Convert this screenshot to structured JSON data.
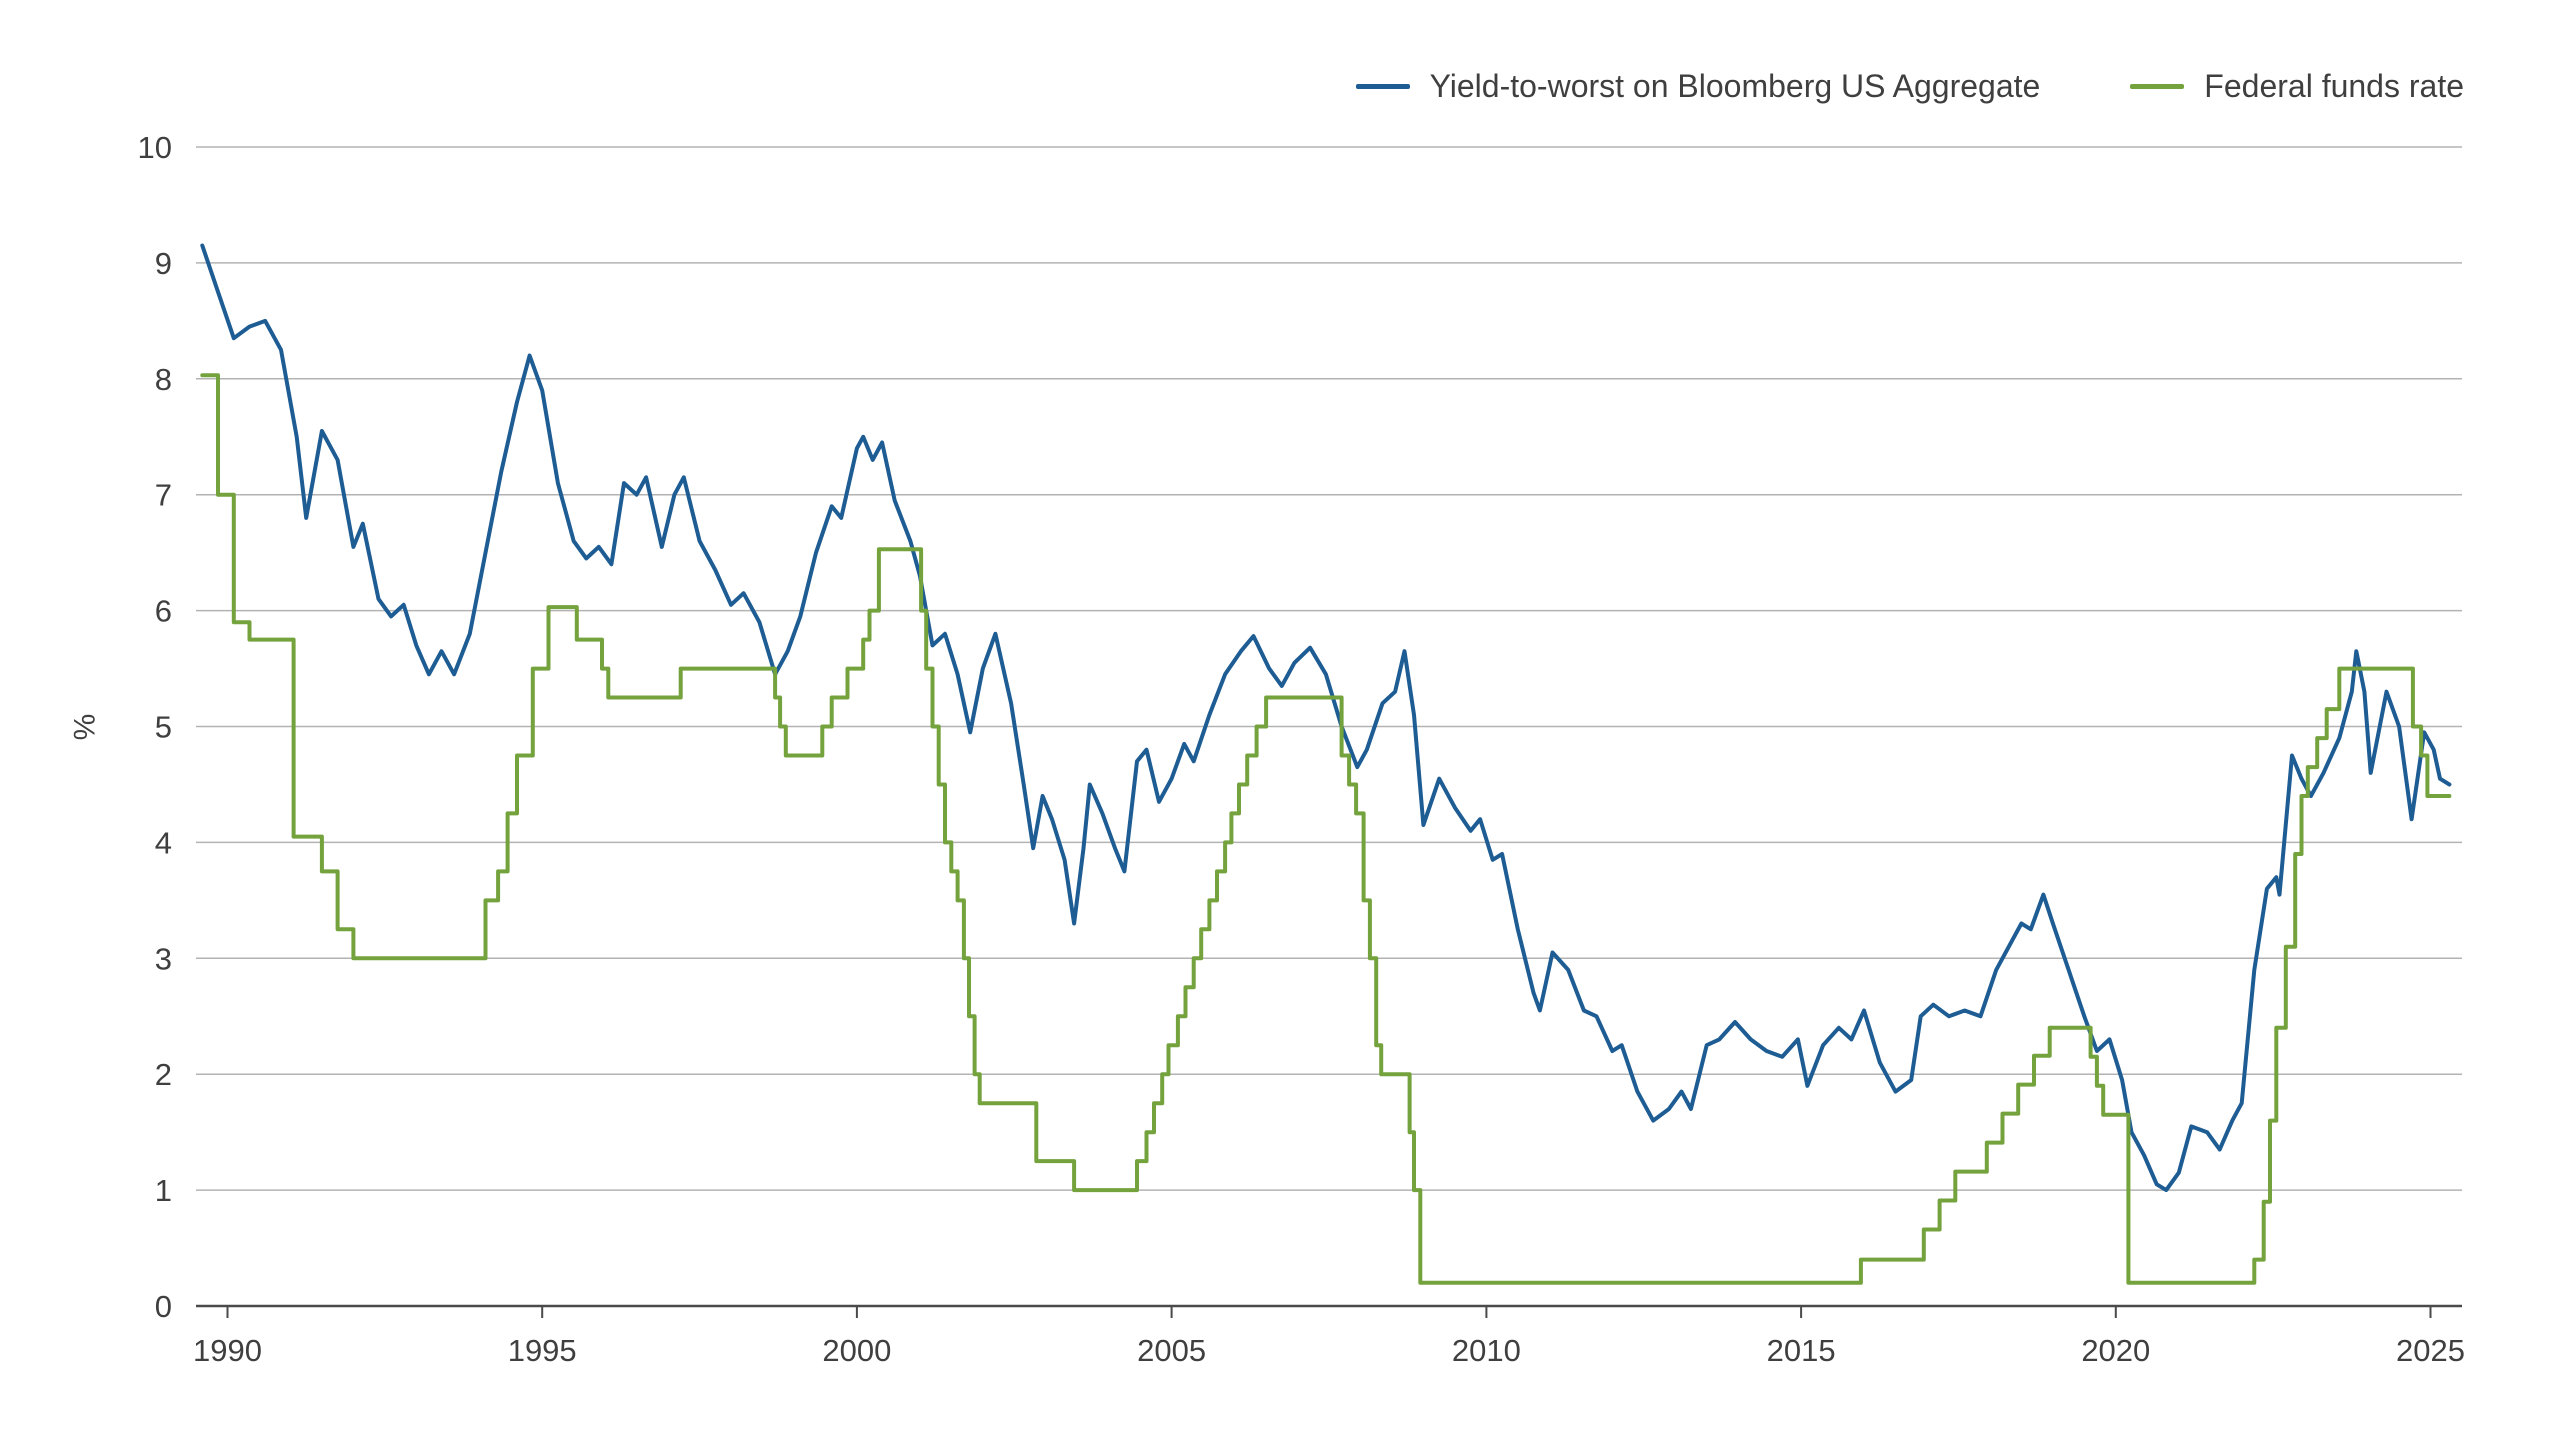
{
  "legend": {
    "position": "top-right"
  },
  "chart_data": {
    "type": "line",
    "ylabel": "%",
    "xlim": [
      1989.5,
      2025.5
    ],
    "ylim": [
      0,
      10
    ],
    "x_end": 2025.3,
    "x_ticks": [
      1990,
      1995,
      2000,
      2005,
      2010,
      2015,
      2020,
      2025
    ],
    "y_ticks": [
      0,
      1,
      2,
      3,
      4,
      5,
      6,
      7,
      8,
      9,
      10
    ],
    "grid": "horizontal",
    "grid_color": "#b3b3b3",
    "axis_color": "#4a4a4a",
    "background": "#ffffff",
    "legend_position": "top-right",
    "series": [
      {
        "id": "yield-to-worst",
        "name": "Yield-to-worst on Bloomberg US Aggregate",
        "color": "#1e5c94",
        "style": "line",
        "points": [
          [
            1989.6,
            9.15
          ],
          [
            1989.85,
            8.75
          ],
          [
            1990.1,
            8.35
          ],
          [
            1990.35,
            8.45
          ],
          [
            1990.6,
            8.5
          ],
          [
            1990.85,
            8.25
          ],
          [
            1991.1,
            7.5
          ],
          [
            1991.25,
            6.8
          ],
          [
            1991.5,
            7.55
          ],
          [
            1991.75,
            7.3
          ],
          [
            1992.0,
            6.55
          ],
          [
            1992.15,
            6.75
          ],
          [
            1992.4,
            6.1
          ],
          [
            1992.6,
            5.95
          ],
          [
            1992.8,
            6.05
          ],
          [
            1993.0,
            5.7
          ],
          [
            1993.2,
            5.45
          ],
          [
            1993.4,
            5.65
          ],
          [
            1993.6,
            5.45
          ],
          [
            1993.85,
            5.8
          ],
          [
            1994.1,
            6.5
          ],
          [
            1994.35,
            7.2
          ],
          [
            1994.6,
            7.8
          ],
          [
            1994.8,
            8.2
          ],
          [
            1995.0,
            7.9
          ],
          [
            1995.25,
            7.1
          ],
          [
            1995.5,
            6.6
          ],
          [
            1995.7,
            6.45
          ],
          [
            1995.9,
            6.55
          ],
          [
            1996.1,
            6.4
          ],
          [
            1996.3,
            7.1
          ],
          [
            1996.5,
            7.0
          ],
          [
            1996.65,
            7.15
          ],
          [
            1996.9,
            6.55
          ],
          [
            1997.1,
            7.0
          ],
          [
            1997.25,
            7.15
          ],
          [
            1997.5,
            6.6
          ],
          [
            1997.75,
            6.35
          ],
          [
            1998.0,
            6.05
          ],
          [
            1998.2,
            6.15
          ],
          [
            1998.45,
            5.9
          ],
          [
            1998.7,
            5.45
          ],
          [
            1998.9,
            5.65
          ],
          [
            1999.1,
            5.95
          ],
          [
            1999.35,
            6.5
          ],
          [
            1999.6,
            6.9
          ],
          [
            1999.75,
            6.8
          ],
          [
            2000.0,
            7.4
          ],
          [
            2000.1,
            7.5
          ],
          [
            2000.25,
            7.3
          ],
          [
            2000.4,
            7.45
          ],
          [
            2000.6,
            6.95
          ],
          [
            2000.85,
            6.6
          ],
          [
            2001.0,
            6.3
          ],
          [
            2001.2,
            5.7
          ],
          [
            2001.4,
            5.8
          ],
          [
            2001.6,
            5.45
          ],
          [
            2001.8,
            4.95
          ],
          [
            2002.0,
            5.5
          ],
          [
            2002.2,
            5.8
          ],
          [
            2002.45,
            5.2
          ],
          [
            2002.65,
            4.5
          ],
          [
            2002.8,
            3.95
          ],
          [
            2002.95,
            4.4
          ],
          [
            2003.1,
            4.2
          ],
          [
            2003.3,
            3.85
          ],
          [
            2003.45,
            3.3
          ],
          [
            2003.6,
            3.95
          ],
          [
            2003.7,
            4.5
          ],
          [
            2003.9,
            4.25
          ],
          [
            2004.1,
            3.95
          ],
          [
            2004.25,
            3.75
          ],
          [
            2004.45,
            4.7
          ],
          [
            2004.6,
            4.8
          ],
          [
            2004.8,
            4.35
          ],
          [
            2005.0,
            4.55
          ],
          [
            2005.2,
            4.85
          ],
          [
            2005.35,
            4.7
          ],
          [
            2005.6,
            5.1
          ],
          [
            2005.85,
            5.45
          ],
          [
            2006.1,
            5.65
          ],
          [
            2006.3,
            5.78
          ],
          [
            2006.55,
            5.5
          ],
          [
            2006.75,
            5.35
          ],
          [
            2006.95,
            5.55
          ],
          [
            2007.2,
            5.68
          ],
          [
            2007.45,
            5.45
          ],
          [
            2007.7,
            5.0
          ],
          [
            2007.95,
            4.65
          ],
          [
            2008.1,
            4.8
          ],
          [
            2008.35,
            5.2
          ],
          [
            2008.55,
            5.3
          ],
          [
            2008.7,
            5.65
          ],
          [
            2008.85,
            5.1
          ],
          [
            2009.0,
            4.15
          ],
          [
            2009.25,
            4.55
          ],
          [
            2009.5,
            4.3
          ],
          [
            2009.75,
            4.1
          ],
          [
            2009.9,
            4.2
          ],
          [
            2010.1,
            3.85
          ],
          [
            2010.25,
            3.9
          ],
          [
            2010.5,
            3.25
          ],
          [
            2010.75,
            2.7
          ],
          [
            2010.85,
            2.55
          ],
          [
            2011.05,
            3.05
          ],
          [
            2011.3,
            2.9
          ],
          [
            2011.55,
            2.55
          ],
          [
            2011.75,
            2.5
          ],
          [
            2012.0,
            2.2
          ],
          [
            2012.15,
            2.25
          ],
          [
            2012.4,
            1.85
          ],
          [
            2012.65,
            1.6
          ],
          [
            2012.9,
            1.7
          ],
          [
            2013.1,
            1.85
          ],
          [
            2013.25,
            1.7
          ],
          [
            2013.5,
            2.25
          ],
          [
            2013.7,
            2.3
          ],
          [
            2013.95,
            2.45
          ],
          [
            2014.2,
            2.3
          ],
          [
            2014.45,
            2.2
          ],
          [
            2014.7,
            2.15
          ],
          [
            2014.95,
            2.3
          ],
          [
            2015.1,
            1.9
          ],
          [
            2015.35,
            2.25
          ],
          [
            2015.6,
            2.4
          ],
          [
            2015.8,
            2.3
          ],
          [
            2016.0,
            2.55
          ],
          [
            2016.25,
            2.1
          ],
          [
            2016.5,
            1.85
          ],
          [
            2016.75,
            1.95
          ],
          [
            2016.9,
            2.5
          ],
          [
            2017.1,
            2.6
          ],
          [
            2017.35,
            2.5
          ],
          [
            2017.6,
            2.55
          ],
          [
            2017.85,
            2.5
          ],
          [
            2018.1,
            2.9
          ],
          [
            2018.35,
            3.15
          ],
          [
            2018.5,
            3.3
          ],
          [
            2018.65,
            3.25
          ],
          [
            2018.85,
            3.55
          ],
          [
            2019.0,
            3.3
          ],
          [
            2019.25,
            2.9
          ],
          [
            2019.5,
            2.5
          ],
          [
            2019.7,
            2.2
          ],
          [
            2019.9,
            2.3
          ],
          [
            2020.1,
            1.95
          ],
          [
            2020.25,
            1.5
          ],
          [
            2020.45,
            1.3
          ],
          [
            2020.65,
            1.05
          ],
          [
            2020.8,
            1.0
          ],
          [
            2021.0,
            1.15
          ],
          [
            2021.2,
            1.55
          ],
          [
            2021.45,
            1.5
          ],
          [
            2021.65,
            1.35
          ],
          [
            2021.85,
            1.6
          ],
          [
            2022.0,
            1.75
          ],
          [
            2022.2,
            2.9
          ],
          [
            2022.4,
            3.6
          ],
          [
            2022.55,
            3.7
          ],
          [
            2022.6,
            3.55
          ],
          [
            2022.8,
            4.75
          ],
          [
            2022.95,
            4.55
          ],
          [
            2023.1,
            4.4
          ],
          [
            2023.3,
            4.6
          ],
          [
            2023.55,
            4.9
          ],
          [
            2023.75,
            5.3
          ],
          [
            2023.82,
            5.65
          ],
          [
            2023.95,
            5.3
          ],
          [
            2024.05,
            4.6
          ],
          [
            2024.3,
            5.3
          ],
          [
            2024.5,
            5.0
          ],
          [
            2024.7,
            4.2
          ],
          [
            2024.9,
            4.95
          ],
          [
            2025.05,
            4.8
          ],
          [
            2025.15,
            4.55
          ],
          [
            2025.3,
            4.5
          ]
        ]
      },
      {
        "id": "federal-funds-rate",
        "name": "Federal funds rate",
        "color": "#74a23d",
        "style": "step",
        "points": [
          [
            1989.6,
            8.03
          ],
          [
            1989.85,
            7.0
          ],
          [
            1990.1,
            5.9
          ],
          [
            1990.35,
            5.75
          ],
          [
            1991.05,
            4.05
          ],
          [
            1991.5,
            3.75
          ],
          [
            1991.75,
            3.25
          ],
          [
            1992.0,
            3.0
          ],
          [
            1994.1,
            3.5
          ],
          [
            1994.3,
            3.75
          ],
          [
            1994.45,
            4.25
          ],
          [
            1994.6,
            4.75
          ],
          [
            1994.85,
            5.5
          ],
          [
            1995.1,
            6.03
          ],
          [
            1995.55,
            5.75
          ],
          [
            1995.95,
            5.5
          ],
          [
            1996.05,
            5.25
          ],
          [
            1997.2,
            5.5
          ],
          [
            1998.7,
            5.25
          ],
          [
            1998.78,
            5.0
          ],
          [
            1998.87,
            4.75
          ],
          [
            1999.45,
            5.0
          ],
          [
            1999.6,
            5.25
          ],
          [
            1999.85,
            5.5
          ],
          [
            2000.1,
            5.75
          ],
          [
            2000.2,
            6.0
          ],
          [
            2000.35,
            6.53
          ],
          [
            2001.02,
            6.0
          ],
          [
            2001.1,
            5.5
          ],
          [
            2001.2,
            5.0
          ],
          [
            2001.3,
            4.5
          ],
          [
            2001.4,
            4.0
          ],
          [
            2001.5,
            3.75
          ],
          [
            2001.6,
            3.5
          ],
          [
            2001.7,
            3.0
          ],
          [
            2001.78,
            2.5
          ],
          [
            2001.87,
            2.0
          ],
          [
            2001.95,
            1.75
          ],
          [
            2002.85,
            1.25
          ],
          [
            2003.45,
            1.0
          ],
          [
            2004.45,
            1.25
          ],
          [
            2004.6,
            1.5
          ],
          [
            2004.72,
            1.75
          ],
          [
            2004.85,
            2.0
          ],
          [
            2004.95,
            2.25
          ],
          [
            2005.1,
            2.5
          ],
          [
            2005.22,
            2.75
          ],
          [
            2005.35,
            3.0
          ],
          [
            2005.47,
            3.25
          ],
          [
            2005.6,
            3.5
          ],
          [
            2005.72,
            3.75
          ],
          [
            2005.85,
            4.0
          ],
          [
            2005.95,
            4.25
          ],
          [
            2006.07,
            4.5
          ],
          [
            2006.2,
            4.75
          ],
          [
            2006.35,
            5.0
          ],
          [
            2006.5,
            5.25
          ],
          [
            2007.7,
            4.75
          ],
          [
            2007.82,
            4.5
          ],
          [
            2007.93,
            4.25
          ],
          [
            2008.05,
            3.5
          ],
          [
            2008.15,
            3.0
          ],
          [
            2008.25,
            2.25
          ],
          [
            2008.33,
            2.0
          ],
          [
            2008.78,
            1.5
          ],
          [
            2008.85,
            1.0
          ],
          [
            2008.95,
            0.2
          ],
          [
            2015.95,
            0.4
          ],
          [
            2016.95,
            0.66
          ],
          [
            2017.2,
            0.91
          ],
          [
            2017.45,
            1.16
          ],
          [
            2017.95,
            1.41
          ],
          [
            2018.2,
            1.66
          ],
          [
            2018.45,
            1.91
          ],
          [
            2018.7,
            2.16
          ],
          [
            2018.95,
            2.4
          ],
          [
            2019.6,
            2.15
          ],
          [
            2019.7,
            1.9
          ],
          [
            2019.8,
            1.65
          ],
          [
            2020.2,
            0.2
          ],
          [
            2022.2,
            0.4
          ],
          [
            2022.35,
            0.9
          ],
          [
            2022.45,
            1.6
          ],
          [
            2022.55,
            2.4
          ],
          [
            2022.7,
            3.1
          ],
          [
            2022.85,
            3.9
          ],
          [
            2022.95,
            4.4
          ],
          [
            2023.05,
            4.65
          ],
          [
            2023.2,
            4.9
          ],
          [
            2023.35,
            5.15
          ],
          [
            2023.55,
            5.5
          ],
          [
            2024.72,
            5.0
          ],
          [
            2024.85,
            4.75
          ],
          [
            2024.95,
            4.4
          ]
        ]
      }
    ]
  }
}
